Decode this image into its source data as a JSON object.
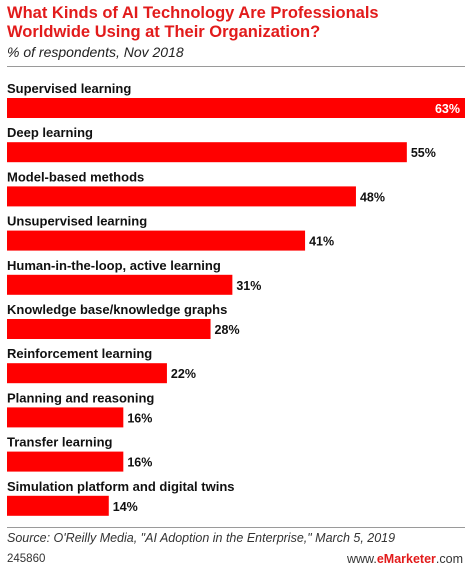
{
  "title": "What Kinds of AI Technology Are Professionals Worldwide Using at Their Organization?",
  "subtitle": "% of respondents, Nov 2018",
  "source": "Source: O'Reilly Media, \"AI Adoption in the Enterprise,\" March 5, 2019",
  "chart_id": "245860",
  "brand": {
    "prefix": "www.",
    "name": "eMarketer",
    "suffix": ".com"
  },
  "colors": {
    "bar": "#ff0000",
    "title": "#e21b1b"
  },
  "chart_data": {
    "type": "bar",
    "orientation": "horizontal",
    "title": "What Kinds of AI Technology Are Professionals Worldwide Using at Their Organization?",
    "subtitle": "% of respondents, Nov 2018",
    "xlabel": "",
    "ylabel": "",
    "xlim": [
      0,
      63
    ],
    "grid": false,
    "categories": [
      "Supervised learning",
      "Deep learning",
      "Model-based methods",
      "Unsupervised learning",
      "Human-in-the-loop, active learning",
      "Knowledge base/knowledge graphs",
      "Reinforcement learning",
      "Planning and reasoning",
      "Transfer learning",
      "Simulation platform and digital twins"
    ],
    "values": [
      63,
      55,
      48,
      41,
      31,
      28,
      22,
      16,
      16,
      14
    ],
    "value_labels": [
      "63%",
      "55%",
      "48%",
      "41%",
      "31%",
      "28%",
      "22%",
      "16%",
      "16%",
      "14%"
    ]
  }
}
